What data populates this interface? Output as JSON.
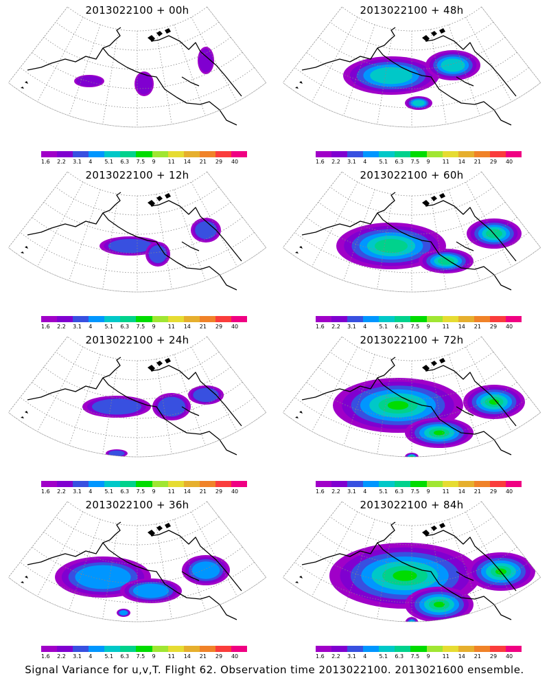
{
  "panels": [
    {
      "title": "2013022100 + 00h"
    },
    {
      "title": "2013022100 + 48h"
    },
    {
      "title": "2013022100 + 12h"
    },
    {
      "title": "2013022100 + 60h"
    },
    {
      "title": "2013022100 + 24h"
    },
    {
      "title": "2013022100 + 72h"
    },
    {
      "title": "2013022100 + 36h"
    },
    {
      "title": "2013022100 + 84h"
    }
  ],
  "colorbar": {
    "labels": [
      "1.6",
      "2.2",
      "3.1",
      "4",
      "5.1",
      "6.3",
      "7.5",
      "9",
      "11",
      "14",
      "21",
      "29",
      "40"
    ],
    "colors": [
      "#a000c8",
      "#8000d0",
      "#3850e0",
      "#0096ff",
      "#00c8c8",
      "#00d28c",
      "#00dc00",
      "#a0e632",
      "#e6dc32",
      "#e6af2d",
      "#f08228",
      "#fa3c3c",
      "#f00082"
    ]
  },
  "footer": "Signal Variance for u,v,T. Flight 62. Observation time 2013022100. 2013021600 ensemble."
}
